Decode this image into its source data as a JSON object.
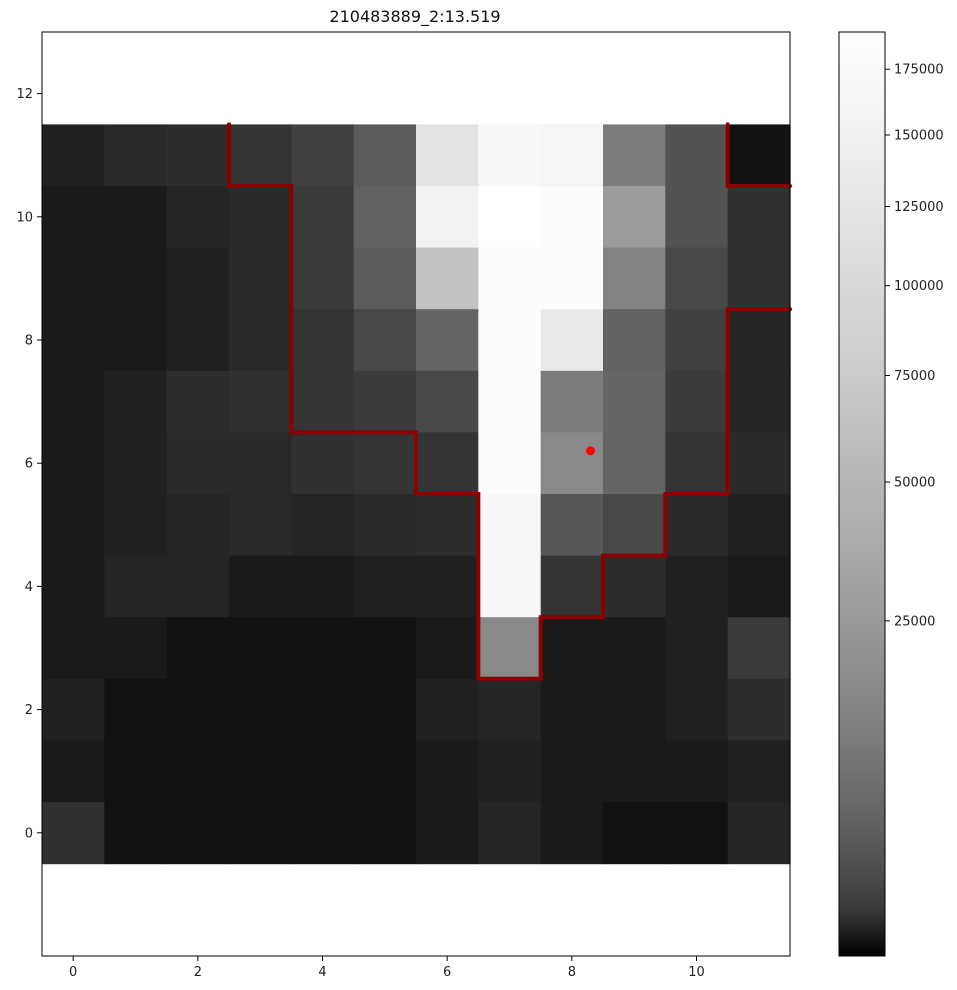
{
  "chart_data": {
    "type": "heatmap",
    "title": "210483889_2:13.519",
    "xlabel": "",
    "ylabel": "",
    "xlim": [
      -0.5,
      11.5
    ],
    "ylim": [
      -2,
      13
    ],
    "image_extent": {
      "x": [
        -0.5,
        11.5
      ],
      "y": [
        -0.5,
        11.5
      ]
    },
    "x_ticks": [
      0,
      2,
      4,
      6,
      8,
      10
    ],
    "y_ticks": [
      0,
      2,
      4,
      6,
      8,
      10,
      12
    ],
    "colormap": "gray",
    "color_scale": "sqrt",
    "color_range": [
      0,
      190000
    ],
    "colorbar_ticks": [
      25000,
      50000,
      75000,
      100000,
      125000,
      150000,
      175000
    ],
    "grid": false,
    "rows_from_top": [
      [
        3000,
        5000,
        6000,
        8000,
        12000,
        25000,
        150000,
        180000,
        175000,
        45000,
        20000,
        1000
      ],
      [
        2000,
        2000,
        4000,
        5000,
        10000,
        28000,
        170000,
        190000,
        185000,
        70000,
        20000,
        7000
      ],
      [
        2000,
        2000,
        3000,
        5000,
        10000,
        25000,
        110000,
        185000,
        185000,
        50000,
        15000,
        7000
      ],
      [
        2000,
        2000,
        3000,
        5000,
        8000,
        15000,
        30000,
        185000,
        160000,
        28000,
        12000,
        4000
      ],
      [
        2000,
        3000,
        6000,
        7000,
        8000,
        10000,
        15000,
        185000,
        45000,
        30000,
        10000,
        4000
      ],
      [
        2000,
        3000,
        5000,
        5000,
        7000,
        8000,
        8000,
        185000,
        55000,
        30000,
        8000,
        5000
      ],
      [
        2000,
        3000,
        4000,
        5000,
        4000,
        5000,
        6000,
        180000,
        22000,
        15000,
        5000,
        3000
      ],
      [
        2000,
        4000,
        4000,
        2000,
        2000,
        3000,
        3000,
        180000,
        8000,
        6000,
        3000,
        2000
      ],
      [
        2000,
        2000,
        1000,
        1000,
        1000,
        1000,
        2000,
        55000,
        2000,
        2000,
        3000,
        10000
      ],
      [
        3000,
        1000,
        1000,
        1000,
        1000,
        1000,
        3000,
        4000,
        2000,
        2000,
        3000,
        6000
      ],
      [
        2000,
        1000,
        1000,
        1000,
        1000,
        1000,
        2000,
        3000,
        2000,
        2000,
        2000,
        3000
      ],
      [
        7000,
        1000,
        1000,
        1000,
        1000,
        1000,
        2000,
        4000,
        2000,
        1000,
        1000,
        4000
      ]
    ],
    "aperture_outline": [
      [
        [
          2.5,
          11.5
        ],
        [
          2.5,
          10.5
        ],
        [
          3.5,
          10.5
        ],
        [
          3.5,
          6.5
        ],
        [
          5.5,
          6.5
        ],
        [
          5.5,
          5.5
        ],
        [
          6.5,
          5.5
        ],
        [
          6.5,
          2.5
        ],
        [
          7.5,
          2.5
        ],
        [
          7.5,
          3.5
        ],
        [
          8.5,
          3.5
        ],
        [
          8.5,
          4.5
        ],
        [
          9.5,
          4.5
        ],
        [
          9.5,
          5.5
        ],
        [
          10.5,
          5.5
        ],
        [
          10.5,
          8.5
        ],
        [
          11.5,
          8.5
        ]
      ],
      [
        [
          10.5,
          11.5
        ],
        [
          10.5,
          10.5
        ],
        [
          11.5,
          10.5
        ]
      ]
    ],
    "centroid": [
      8.3,
      6.2
    ],
    "outline_color": "#8b0000",
    "centroid_color": "#ff0000"
  }
}
